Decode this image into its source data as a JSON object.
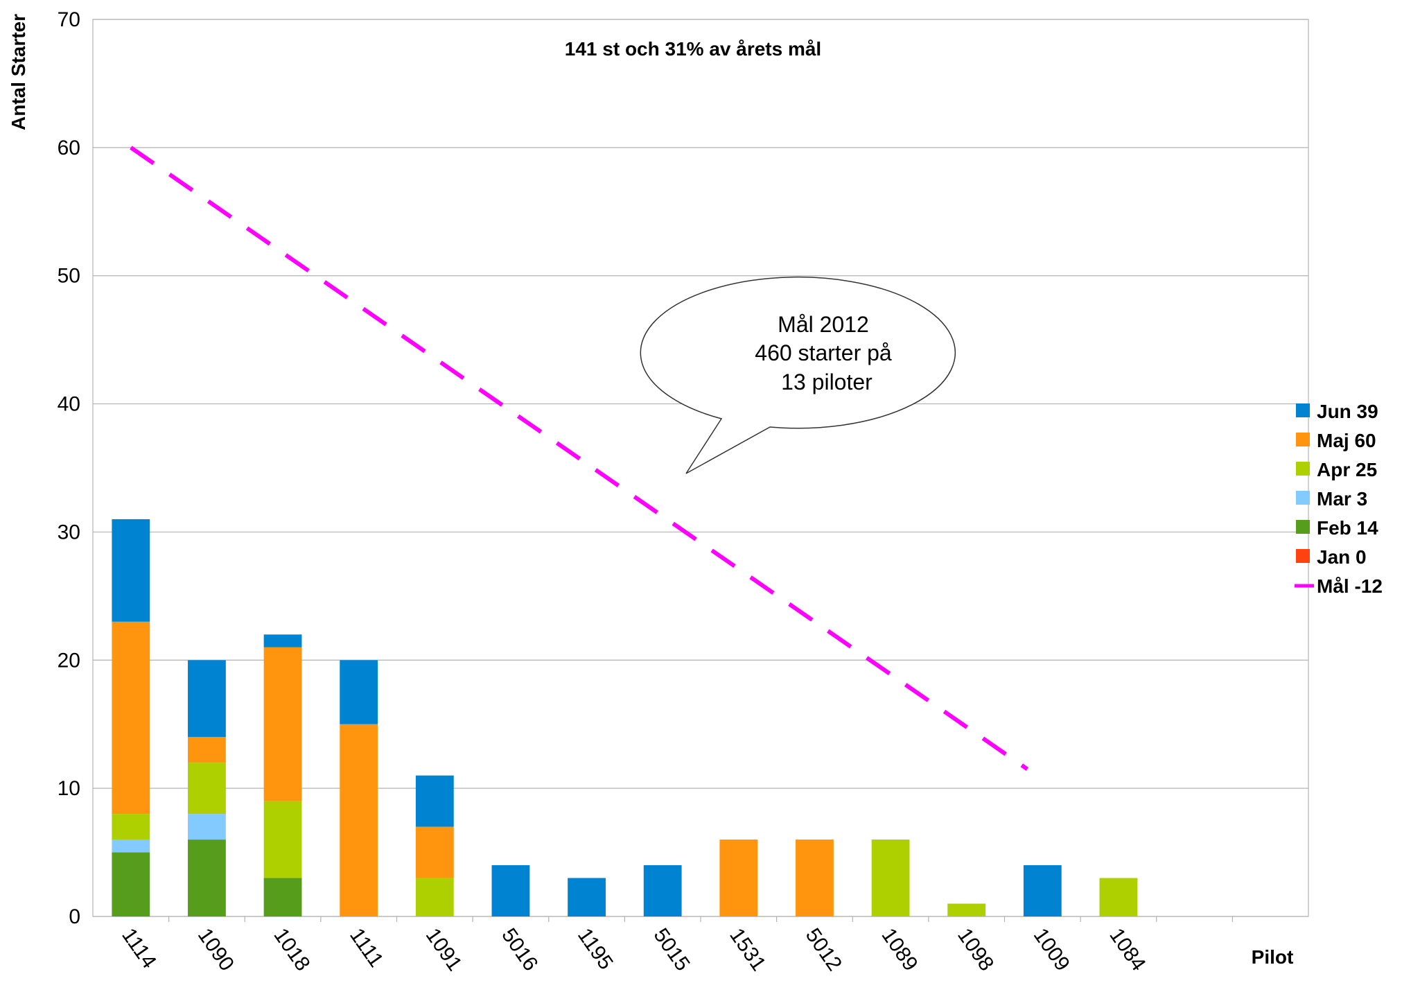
{
  "chart_data": {
    "type": "bar",
    "stacked": true,
    "title": "141 st och 31% av årets mål",
    "xlabel": "Pilot",
    "ylabel": "Antal Starter",
    "ylim": [
      0,
      70
    ],
    "yticks": [
      0,
      10,
      20,
      30,
      40,
      50,
      60,
      70
    ],
    "grid": true,
    "legend_position": "right",
    "categories": [
      "1114",
      "1090",
      "1018",
      "1111",
      "1091",
      "5016",
      "1195",
      "5015",
      "1531",
      "5012",
      "1089",
      "1098",
      "1009",
      "1084",
      "",
      ""
    ],
    "series": [
      {
        "name": "Jan 0",
        "color": "#ff420e",
        "values": [
          0,
          0,
          0,
          0,
          0,
          0,
          0,
          0,
          0,
          0,
          0,
          0,
          0,
          0,
          0,
          0
        ]
      },
      {
        "name": "Feb 14",
        "color": "#579d1c",
        "values": [
          5,
          6,
          3,
          0,
          0,
          0,
          0,
          0,
          0,
          0,
          0,
          0,
          0,
          0,
          0,
          0
        ]
      },
      {
        "name": "Mar 3",
        "color": "#83caff",
        "values": [
          1,
          2,
          0,
          0,
          0,
          0,
          0,
          0,
          0,
          0,
          0,
          0,
          0,
          0,
          0,
          0
        ]
      },
      {
        "name": "Apr 25",
        "color": "#aecf00",
        "values": [
          2,
          4,
          6,
          0,
          3,
          0,
          0,
          0,
          0,
          0,
          6,
          1,
          0,
          3,
          0,
          0
        ]
      },
      {
        "name": "Maj 60",
        "color": "#ff950e",
        "values": [
          15,
          2,
          12,
          15,
          4,
          0,
          0,
          0,
          6,
          6,
          0,
          0,
          0,
          0,
          0,
          0
        ]
      },
      {
        "name": "Jun 39",
        "color": "#0084d1",
        "values": [
          8,
          6,
          1,
          5,
          4,
          4,
          3,
          4,
          0,
          0,
          0,
          0,
          4,
          0,
          0,
          0
        ]
      }
    ],
    "target_line": {
      "name": "Mål -12",
      "color": "#ff00ff",
      "style": "dashed",
      "from": {
        "category": "1114",
        "value": 60
      },
      "to": {
        "category": "1009",
        "value": 11.5
      }
    },
    "legend_order": [
      "Jun 39",
      "Maj 60",
      "Apr 25",
      "Mar 3",
      "Feb 14",
      "Jan 0",
      "Mål -12"
    ],
    "callout": {
      "lines": [
        "Mål 2012",
        "460 starter på",
        "13 piloter"
      ]
    }
  }
}
